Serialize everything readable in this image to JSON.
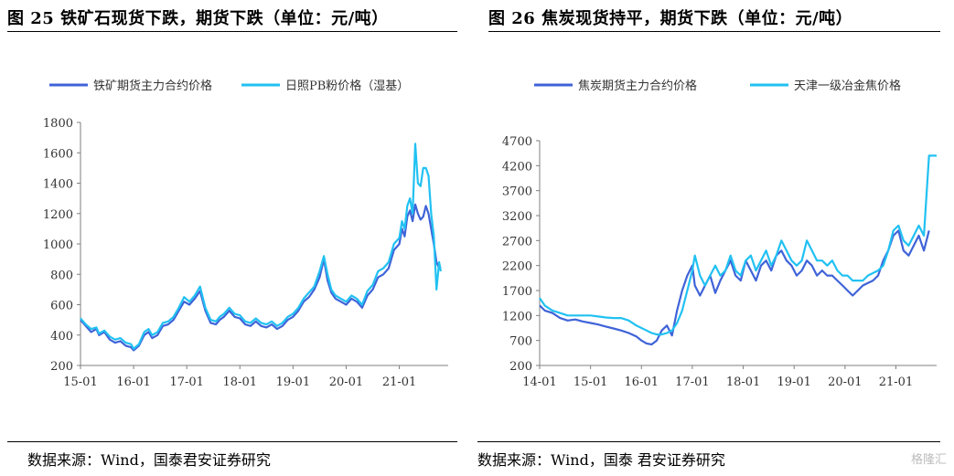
{
  "charts": [
    {
      "figure_title": "图 25  铁矿石现货下跌，期货下跌（单位：元/吨）",
      "source": "数据来源：Wind，国泰君安证券研究",
      "chart_data": {
        "type": "line",
        "title": "图 25  铁矿石现货下跌，期货下跌（单位：元/吨）",
        "xlabel": "",
        "ylabel": "",
        "x_ticks": [
          "15-01",
          "16-01",
          "17-01",
          "18-01",
          "19-01",
          "20-01",
          "21-01"
        ],
        "y_ticks": [
          200,
          400,
          600,
          800,
          1000,
          1200,
          1400,
          1600,
          1800
        ],
        "ylim": [
          200,
          1800
        ],
        "xlim": [
          2015.0,
          2021.92
        ],
        "grid": false,
        "legend": "top",
        "series": [
          {
            "name": "铁矿期货主力合约价格",
            "color": "#3f63d8",
            "x": [
              2015.0,
              2015.1,
              2015.2,
              2015.3,
              2015.35,
              2015.45,
              2015.55,
              2015.65,
              2015.75,
              2015.85,
              2015.95,
              2016.0,
              2016.1,
              2016.2,
              2016.28,
              2016.35,
              2016.45,
              2016.55,
              2016.65,
              2016.75,
              2016.85,
              2016.95,
              2017.05,
              2017.15,
              2017.25,
              2017.35,
              2017.45,
              2017.55,
              2017.62,
              2017.7,
              2017.8,
              2017.9,
              2018.0,
              2018.1,
              2018.2,
              2018.3,
              2018.4,
              2018.5,
              2018.6,
              2018.7,
              2018.8,
              2018.9,
              2019.0,
              2019.1,
              2019.2,
              2019.3,
              2019.4,
              2019.5,
              2019.58,
              2019.65,
              2019.72,
              2019.8,
              2019.9,
              2020.0,
              2020.1,
              2020.2,
              2020.3,
              2020.4,
              2020.5,
              2020.6,
              2020.7,
              2020.8,
              2020.9,
              2021.0,
              2021.05,
              2021.1,
              2021.15,
              2021.2,
              2021.25,
              2021.3,
              2021.35,
              2021.4,
              2021.45,
              2021.5,
              2021.55,
              2021.6,
              2021.65,
              2021.7,
              2021.75,
              2021.78
            ],
            "y": [
              500,
              460,
              420,
              440,
              400,
              420,
              370,
              350,
              360,
              330,
              320,
              300,
              330,
              400,
              420,
              380,
              400,
              460,
              470,
              500,
              560,
              620,
              600,
              640,
              690,
              560,
              480,
              470,
              500,
              520,
              560,
              520,
              510,
              470,
              460,
              490,
              460,
              450,
              470,
              440,
              460,
              500,
              520,
              560,
              620,
              650,
              700,
              780,
              900,
              760,
              680,
              640,
              620,
              600,
              640,
              620,
              580,
              660,
              700,
              780,
              800,
              840,
              960,
              1000,
              1100,
              1050,
              1180,
              1220,
              1150,
              1260,
              1200,
              1160,
              1180,
              1250,
              1200,
              1100,
              1000,
              880,
              840,
              850
            ]
          },
          {
            "name": "日照PB粉价格（湿基）",
            "color": "#21c1f2",
            "x": [
              2015.0,
              2015.1,
              2015.2,
              2015.3,
              2015.35,
              2015.45,
              2015.55,
              2015.65,
              2015.75,
              2015.85,
              2015.95,
              2016.0,
              2016.1,
              2016.2,
              2016.28,
              2016.35,
              2016.45,
              2016.55,
              2016.65,
              2016.75,
              2016.85,
              2016.95,
              2017.05,
              2017.15,
              2017.25,
              2017.35,
              2017.45,
              2017.55,
              2017.62,
              2017.7,
              2017.8,
              2017.9,
              2018.0,
              2018.1,
              2018.2,
              2018.3,
              2018.4,
              2018.5,
              2018.6,
              2018.7,
              2018.8,
              2018.9,
              2019.0,
              2019.1,
              2019.2,
              2019.3,
              2019.4,
              2019.5,
              2019.58,
              2019.65,
              2019.72,
              2019.8,
              2019.9,
              2020.0,
              2020.1,
              2020.2,
              2020.3,
              2020.4,
              2020.5,
              2020.6,
              2020.7,
              2020.8,
              2020.9,
              2021.0,
              2021.05,
              2021.1,
              2021.15,
              2021.2,
              2021.25,
              2021.3,
              2021.35,
              2021.4,
              2021.45,
              2021.5,
              2021.55,
              2021.6,
              2021.65,
              2021.7,
              2021.75,
              2021.78
            ],
            "y": [
              510,
              470,
              440,
              450,
              410,
              430,
              390,
              370,
              380,
              350,
              340,
              310,
              340,
              420,
              440,
              400,
              420,
              480,
              490,
              520,
              580,
              650,
              620,
              660,
              720,
              580,
              500,
              490,
              520,
              540,
              580,
              540,
              530,
              490,
              480,
              510,
              480,
              470,
              490,
              460,
              480,
              520,
              540,
              580,
              640,
              680,
              720,
              820,
              920,
              800,
              700,
              660,
              640,
              620,
              660,
              640,
              600,
              690,
              730,
              820,
              840,
              880,
              1000,
              1040,
              1150,
              1100,
              1250,
              1300,
              1200,
              1660,
              1400,
              1380,
              1500,
              1500,
              1450,
              1200,
              1050,
              700,
              880,
              820
            ]
          }
        ]
      }
    },
    {
      "figure_title": "图 26  焦炭现货持平，期货下跌（单位：元/吨）",
      "source": "数据来源：Wind，国泰      君安证券研究",
      "chart_data": {
        "type": "line",
        "title": "图 26  焦炭现货持平，期货下跌（单位：元/吨）",
        "xlabel": "",
        "ylabel": "",
        "x_ticks": [
          "14-01",
          "15-01",
          "16-01",
          "17-01",
          "18-01",
          "19-01",
          "20-01",
          "21-01"
        ],
        "y_ticks": [
          200,
          700,
          1200,
          1700,
          2200,
          2700,
          3200,
          3700,
          4200,
          4700
        ],
        "ylim": [
          200,
          4700
        ],
        "xlim": [
          2014.0,
          2021.8
        ],
        "grid": false,
        "legend": "top",
        "series": [
          {
            "name": "焦炭期货主力合约价格",
            "color": "#3f63d8",
            "x": [
              2014.0,
              2014.1,
              2014.25,
              2014.4,
              2014.55,
              2014.7,
              2014.85,
              2015.0,
              2015.15,
              2015.3,
              2015.45,
              2015.6,
              2015.75,
              2015.9,
              2016.0,
              2016.1,
              2016.2,
              2016.3,
              2016.4,
              2016.5,
              2016.6,
              2016.7,
              2016.8,
              2016.9,
              2017.0,
              2017.05,
              2017.15,
              2017.25,
              2017.35,
              2017.45,
              2017.55,
              2017.65,
              2017.75,
              2017.85,
              2017.95,
              2018.05,
              2018.15,
              2018.25,
              2018.35,
              2018.45,
              2018.55,
              2018.65,
              2018.75,
              2018.85,
              2018.95,
              2019.05,
              2019.15,
              2019.25,
              2019.35,
              2019.45,
              2019.55,
              2019.65,
              2019.75,
              2019.85,
              2019.95,
              2020.05,
              2020.15,
              2020.25,
              2020.35,
              2020.45,
              2020.55,
              2020.65,
              2020.75,
              2020.85,
              2020.95,
              2021.05,
              2021.15,
              2021.25,
              2021.35,
              2021.45,
              2021.55,
              2021.65
            ],
            "y": [
              1400,
              1300,
              1250,
              1150,
              1100,
              1120,
              1080,
              1050,
              1020,
              980,
              940,
              900,
              850,
              780,
              700,
              640,
              620,
              700,
              900,
              1000,
              800,
              1300,
              1700,
              2000,
              2200,
              1800,
              1600,
              1800,
              2000,
              1650,
              1900,
              2100,
              2300,
              2000,
              1900,
              2300,
              2100,
              1900,
              2200,
              2300,
              2100,
              2400,
              2500,
              2300,
              2200,
              2000,
              2100,
              2300,
              2200,
              2000,
              2100,
              2000,
              2000,
              1900,
              1800,
              1700,
              1600,
              1700,
              1800,
              1850,
              1900,
              2000,
              2300,
              2500,
              2800,
              2900,
              2500,
              2400,
              2600,
              2800,
              2500,
              2900
            ]
          },
          {
            "name": "天津一级冶金焦价格",
            "color": "#21c1f2",
            "x": [
              2014.0,
              2014.1,
              2014.25,
              2014.4,
              2014.55,
              2014.7,
              2014.85,
              2015.0,
              2015.15,
              2015.3,
              2015.45,
              2015.6,
              2015.75,
              2015.9,
              2016.0,
              2016.1,
              2016.2,
              2016.3,
              2016.4,
              2016.5,
              2016.6,
              2016.7,
              2016.8,
              2016.9,
              2017.0,
              2017.05,
              2017.15,
              2017.25,
              2017.35,
              2017.45,
              2017.55,
              2017.65,
              2017.75,
              2017.85,
              2017.95,
              2018.05,
              2018.15,
              2018.25,
              2018.35,
              2018.45,
              2018.55,
              2018.65,
              2018.75,
              2018.85,
              2018.95,
              2019.05,
              2019.15,
              2019.25,
              2019.35,
              2019.45,
              2019.55,
              2019.65,
              2019.75,
              2019.85,
              2019.95,
              2020.05,
              2020.15,
              2020.25,
              2020.35,
              2020.45,
              2020.55,
              2020.65,
              2020.75,
              2020.85,
              2020.95,
              2021.05,
              2021.15,
              2021.25,
              2021.35,
              2021.45,
              2021.55,
              2021.6,
              2021.65,
              2021.7,
              2021.8
            ],
            "y": [
              1550,
              1400,
              1300,
              1250,
              1200,
              1200,
              1200,
              1200,
              1180,
              1160,
              1150,
              1150,
              1100,
              1000,
              950,
              900,
              850,
              820,
              820,
              850,
              900,
              1050,
              1300,
              1700,
              2100,
              2400,
              2000,
              1800,
              2000,
              2200,
              2000,
              2100,
              2400,
              2100,
              2000,
              2300,
              2400,
              2100,
              2300,
              2500,
              2200,
              2400,
              2700,
              2500,
              2300,
              2200,
              2300,
              2700,
              2500,
              2300,
              2300,
              2200,
              2300,
              2100,
              2000,
              2000,
              1900,
              1900,
              1900,
              2000,
              2050,
              2100,
              2200,
              2500,
              2900,
              3000,
              2700,
              2600,
              2800,
              3000,
              2800,
              3600,
              4400,
              4400,
              4400
            ]
          }
        ]
      }
    }
  ],
  "watermark": "格隆汇"
}
